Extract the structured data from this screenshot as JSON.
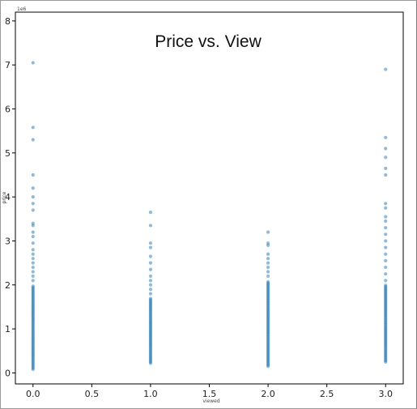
{
  "chart_data": {
    "type": "scatter",
    "title": "Price vs. View",
    "xlabel": "viewed",
    "ylabel": "price",
    "y_multiplier_label": "1e6",
    "xlim": [
      -0.15,
      3.15
    ],
    "ylim": [
      -0.25,
      8.2
    ],
    "x_ticks": [
      0.0,
      0.5,
      1.0,
      1.5,
      2.0,
      2.5,
      3.0
    ],
    "x_tick_labels": [
      "0.0",
      "0.5",
      "1.0",
      "1.5",
      "2.0",
      "2.5",
      "3.0"
    ],
    "y_ticks": [
      0,
      1,
      2,
      3,
      4,
      5,
      6,
      7,
      8
    ],
    "y_tick_labels": [
      "0",
      "1",
      "2",
      "3",
      "4",
      "5",
      "6",
      "7",
      "8"
    ],
    "color": "#1f77b4",
    "grid": false,
    "groups": [
      {
        "x": 0.0,
        "min": 0.08,
        "dense_max": 2.0,
        "sparse": [
          2.1,
          2.2,
          2.3,
          2.4,
          2.5,
          2.6,
          2.7,
          2.8,
          2.95,
          3.1,
          3.2,
          3.35,
          3.4,
          3.7,
          3.85,
          4.0,
          4.2,
          4.5,
          5.3,
          5.58,
          7.05
        ]
      },
      {
        "x": 1.0,
        "min": 0.22,
        "dense_max": 1.7,
        "sparse": [
          1.8,
          1.9,
          2.0,
          2.1,
          2.2,
          2.35,
          2.5,
          2.65,
          2.85,
          2.95,
          3.35,
          3.65
        ]
      },
      {
        "x": 2.0,
        "min": 0.15,
        "dense_max": 2.1,
        "sparse": [
          2.2,
          2.3,
          2.4,
          2.5,
          2.6,
          2.7,
          2.9,
          2.95,
          3.2
        ]
      },
      {
        "x": 3.0,
        "min": 0.25,
        "dense_max": 2.0,
        "sparse": [
          2.1,
          2.25,
          2.4,
          2.55,
          2.7,
          2.85,
          3.0,
          3.15,
          3.3,
          3.45,
          3.55,
          3.75,
          3.85,
          4.5,
          4.65,
          4.9,
          5.1,
          5.35,
          6.9
        ]
      }
    ]
  }
}
